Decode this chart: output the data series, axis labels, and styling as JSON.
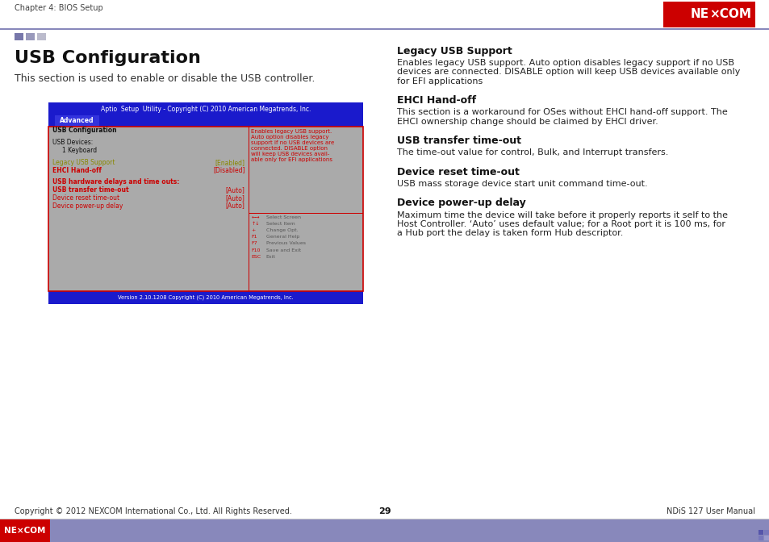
{
  "page_bg": "#ffffff",
  "header_text": "Chapter 4: BIOS Setup",
  "header_line_color": "#8888bb",
  "header_squares": [
    "#7777aa",
    "#9999bb",
    "#bbbbcc"
  ],
  "title": "USB Configuration",
  "intro": "This section is used to enable or disable the USB controller.",
  "bios_title_bar_bg": "#1a1acc",
  "bios_title_text": "Aptio  Setup  Utility - Copyright (C) 2010 American Megatrends, Inc.",
  "bios_tab_text": "Advanced",
  "bios_body_bg": "#aaaaaa",
  "bios_border_color": "#cc0000",
  "bios_footer_text": "Version 2.10.1208 Copyright (C) 2010 American Megatrends, Inc.",
  "bios_left_items": [
    {
      "text": "USB Configuration",
      "color": "#111111",
      "bold": true,
      "indent": 0
    },
    {
      "text": "",
      "color": "#000000",
      "bold": false,
      "indent": 0
    },
    {
      "text": "USB Devices:",
      "color": "#111111",
      "bold": false,
      "indent": 0
    },
    {
      "text": "1 Keyboard",
      "color": "#111111",
      "bold": false,
      "indent": 1
    },
    {
      "text": "",
      "color": "#000000",
      "bold": false,
      "indent": 0
    },
    {
      "text": "Legacy USB Support",
      "color": "#888800",
      "bold": false,
      "indent": 0,
      "value": "[Enabled]",
      "val_color": "#888800"
    },
    {
      "text": "EHCI Hand-off",
      "color": "#cc0000",
      "bold": true,
      "indent": 0,
      "value": "[Disabled]",
      "val_color": "#cc0000"
    },
    {
      "text": "",
      "color": "#000000",
      "bold": false,
      "indent": 0
    },
    {
      "text": "USB hardware delays and time outs:",
      "color": "#cc0000",
      "bold": true,
      "indent": 0
    },
    {
      "text": "USB transfer time-out",
      "color": "#cc0000",
      "bold": true,
      "indent": 0,
      "value": "[Auto]",
      "val_color": "#cc0000"
    },
    {
      "text": "Device reset time-out",
      "color": "#cc0000",
      "bold": false,
      "indent": 0,
      "value": "[Auto]",
      "val_color": "#cc0000"
    },
    {
      "text": "Device power-up delay",
      "color": "#cc0000",
      "bold": false,
      "indent": 0,
      "value": "[Auto]",
      "val_color": "#cc0000"
    }
  ],
  "bios_right_top_text": "Enables legacy USB support.\nAuto option disables legacy\nsupport if no USB devices are\nconnected. DISABLE option\nwill keep USB devices avail-\nable only for EFI applications",
  "bios_right_top_color": "#cc0000",
  "key_items": [
    [
      "←→",
      "Select Screen"
    ],
    [
      "↑↓",
      "Select Item"
    ],
    [
      "+",
      "Change Opt."
    ],
    [
      "F1",
      "General Help"
    ],
    [
      "F7",
      "Previous Values"
    ],
    [
      "F10",
      "Save and Exit"
    ],
    [
      "ESC",
      "Exit"
    ]
  ],
  "right_sections": [
    {
      "heading": "Legacy USB Support",
      "body": "Enables legacy USB support. Auto option disables legacy support if no USB\ndevices are connected. DISABLE option will keep USB devices available only\nfor EFI applications"
    },
    {
      "heading": "EHCI Hand-off",
      "body": "This section is a workaround for OSes without EHCI hand-off support. The\nEHCI ownership change should be claimed by EHCI driver."
    },
    {
      "heading": "USB transfer time-out",
      "body": "The time-out value for control, Bulk, and Interrupt transfers."
    },
    {
      "heading": "Device reset time-out",
      "body": "USB mass storage device start unit command time-out."
    },
    {
      "heading": "Device power-up delay",
      "body": "Maximum time the device will take before it properly reports it self to the\nHost Controller. ‘Auto’ uses default value; for a Root port it is 100 ms, for\na Hub port the delay is taken form Hub descriptor."
    }
  ],
  "footer_bar_bg": "#8888bb",
  "footer_nexcom_bg": "#cc0000",
  "footer_text_left": "Copyright © 2012 NEXCOM International Co., Ltd. All Rights Reserved.",
  "footer_text_center": "29",
  "footer_text_right": "NDiS 127 User Manual"
}
